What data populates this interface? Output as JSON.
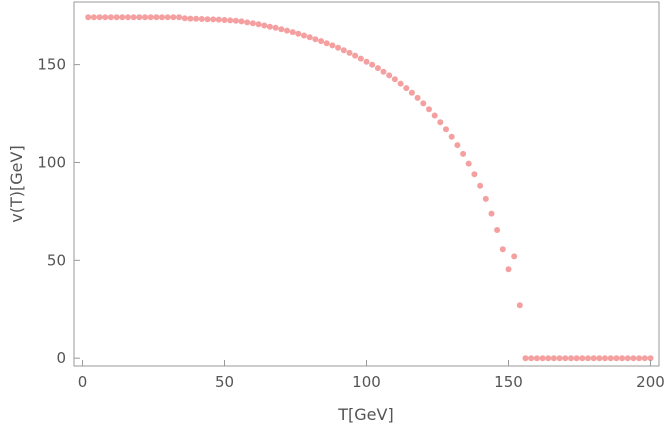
{
  "chart_data": {
    "type": "scatter",
    "title": "",
    "xlabel": "T[GeV]",
    "ylabel": "v(T)[GeV]",
    "xlim": [
      -3,
      203
    ],
    "ylim": [
      -4,
      182
    ],
    "x_ticks": [
      0,
      50,
      100,
      150,
      200
    ],
    "y_ticks": [
      0,
      50,
      100,
      150
    ],
    "grid": false,
    "marker_color": "#f4a0a0",
    "series": [
      {
        "x": [
          2,
          4,
          6,
          8,
          10,
          12,
          14,
          16,
          18,
          20,
          22,
          24,
          26,
          28,
          30,
          32,
          34,
          36,
          38,
          40,
          42,
          44,
          46,
          48,
          50,
          52,
          54,
          56,
          58,
          60,
          62,
          64,
          66,
          68,
          70,
          72,
          74,
          76,
          78,
          80,
          82,
          84,
          86,
          88,
          90,
          92,
          94,
          96,
          98,
          100,
          102,
          104,
          106,
          108,
          110,
          112,
          114,
          116,
          118,
          120,
          122,
          124,
          126,
          128,
          130,
          132,
          134,
          136,
          138,
          140,
          142,
          144,
          146,
          148,
          150,
          152,
          154,
          156,
          158,
          160,
          162,
          164,
          166,
          168,
          170,
          172,
          174,
          176,
          178,
          180,
          182,
          184,
          186,
          188,
          190,
          192,
          194,
          196,
          198,
          200
        ],
        "values": [
          174.2,
          174.2,
          174.2,
          174.2,
          174.2,
          174.2,
          174.2,
          174.2,
          174.2,
          174.2,
          174.2,
          174.2,
          174.2,
          174.2,
          174.2,
          174.2,
          174.2,
          173.7,
          173.5,
          173.4,
          173.3,
          173.2,
          173.1,
          173.0,
          172.8,
          172.6,
          172.4,
          172.1,
          171.6,
          171.1,
          170.6,
          170.0,
          169.4,
          168.8,
          168.1,
          167.4,
          166.6,
          165.8,
          164.9,
          164.0,
          163.0,
          162.0,
          160.9,
          159.8,
          158.6,
          157.3,
          156.0,
          154.6,
          153.1,
          151.5,
          149.9,
          148.2,
          146.4,
          144.5,
          142.5,
          140.3,
          138.0,
          135.6,
          133.0,
          130.2,
          127.2,
          124.0,
          120.6,
          117.0,
          113.1,
          108.9,
          104.4,
          99.4,
          94.0,
          88.1,
          81.4,
          73.9,
          65.5,
          55.7,
          45.4,
          52.0,
          27.0,
          0,
          0,
          0,
          0,
          0,
          0,
          0,
          0,
          0,
          0,
          0,
          0,
          0,
          0,
          0,
          0,
          0,
          0,
          0,
          0,
          0,
          0,
          0
        ]
      }
    ]
  }
}
